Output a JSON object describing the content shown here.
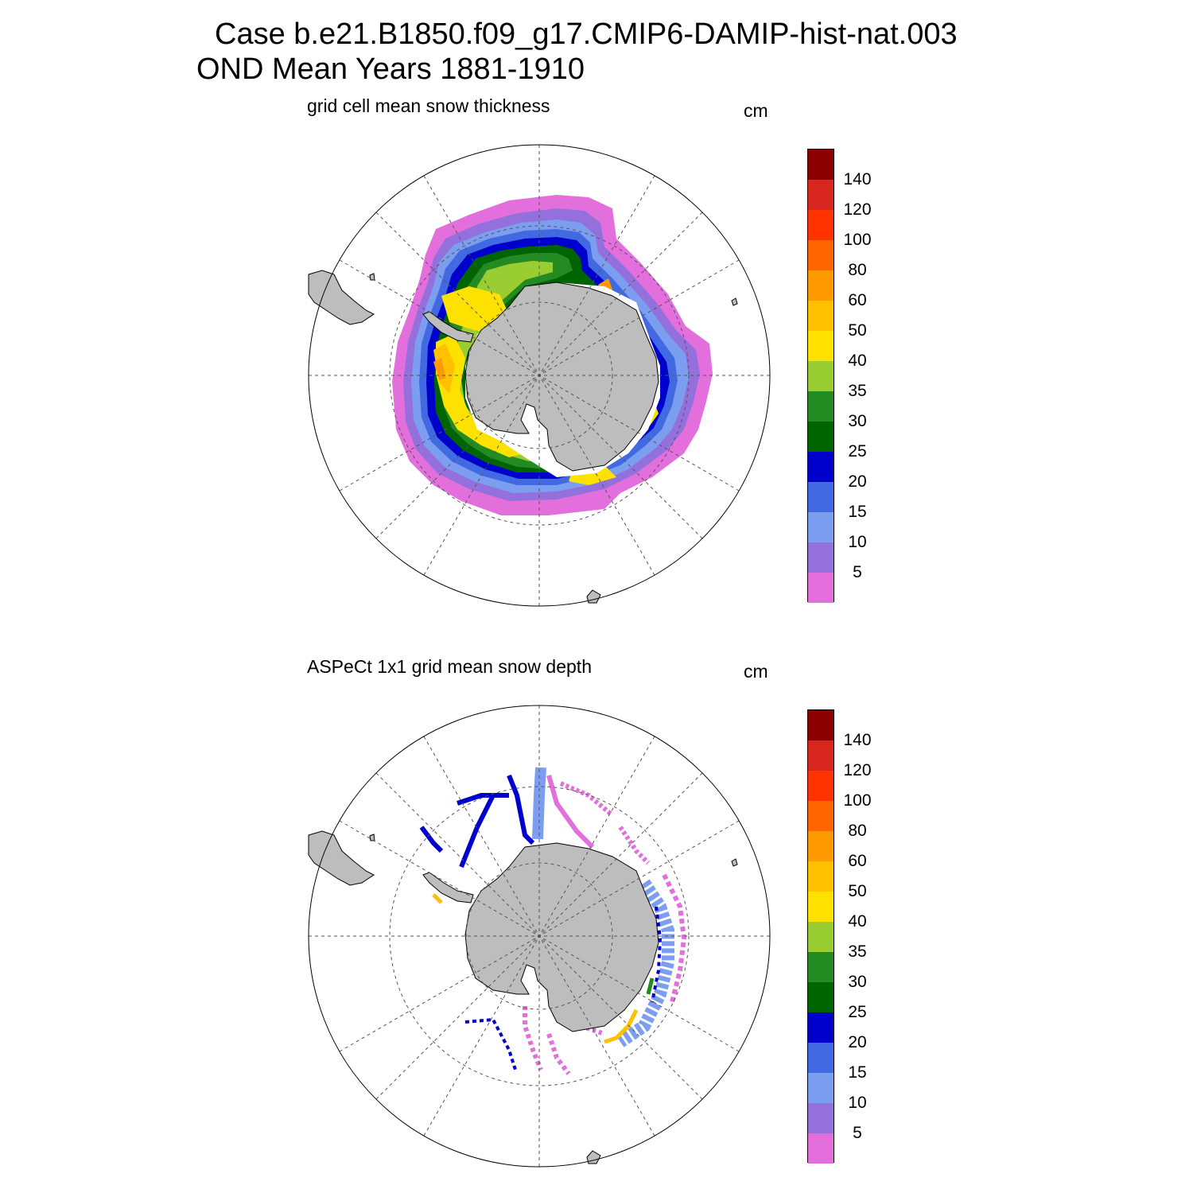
{
  "figure": {
    "title_line1": "Case b.e21.B1850.f09_g17.CMIP6-DAMIP-hist-nat.003",
    "title_line2": "OND Mean   Years 1881-1910"
  },
  "panels": [
    {
      "id": "model",
      "subtitle": "grid cell mean snow thickness",
      "units": "cm"
    },
    {
      "id": "obs",
      "subtitle": "ASPeCt 1x1 grid mean snow depth",
      "units": "cm"
    }
  ],
  "colorbar": {
    "labels": [
      "140",
      "120",
      "100",
      "80",
      "60",
      "50",
      "40",
      "35",
      "30",
      "25",
      "20",
      "15",
      "10",
      "5"
    ],
    "colors": [
      "#8b0000",
      "#d7261e",
      "#ff3300",
      "#ff6600",
      "#ff9900",
      "#ffc000",
      "#ffe100",
      "#9acd32",
      "#228b22",
      "#006400",
      "#0000cd",
      "#4169e1",
      "#7b9ef0",
      "#9370db",
      "#e36fdc"
    ]
  },
  "map_colors": {
    "land": "#bdbdbd",
    "grid": "#555555"
  }
}
